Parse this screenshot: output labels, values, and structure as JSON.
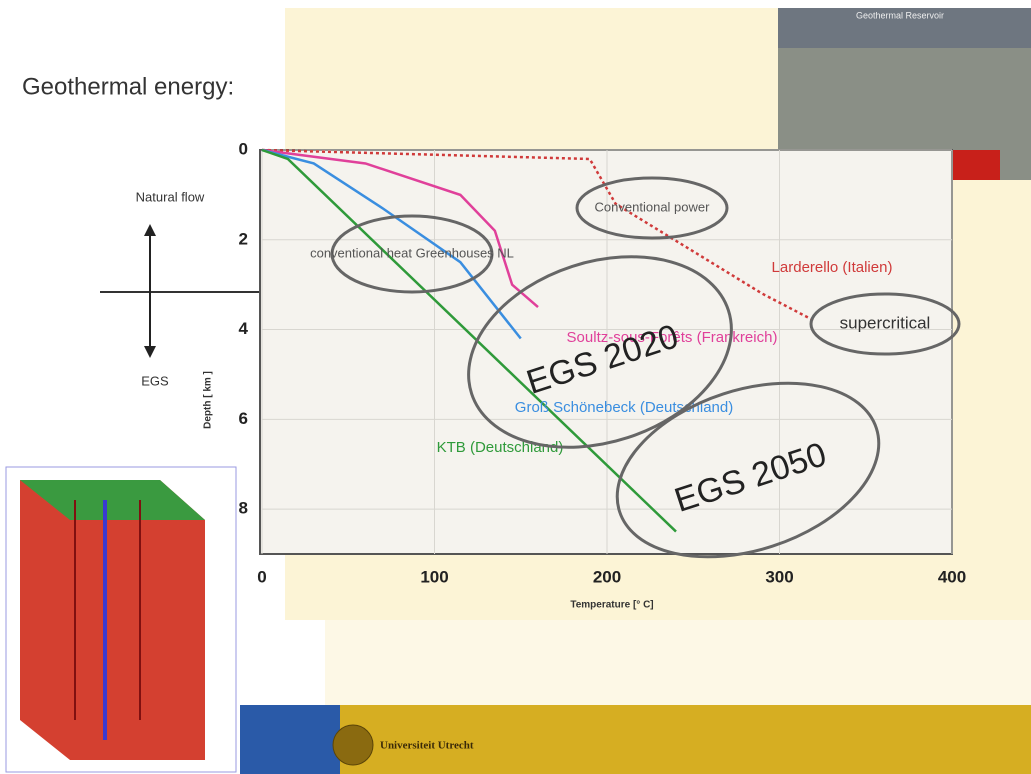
{
  "page_title": "Geothermal energy:",
  "photo_caption": "Geothermal Reservoir",
  "footer": "Universiteit Utrecht",
  "side_labels": [
    "Natural flow",
    "EGS"
  ],
  "chart_data": {
    "type": "line",
    "x_label": "Temperature [° C]",
    "y_label": "Depth [ km ]",
    "xlim": [
      0,
      400
    ],
    "ylim": [
      0,
      9
    ],
    "y_reversed": true,
    "xticks": [
      0,
      100,
      200,
      300,
      400
    ],
    "yticks": [
      0,
      2,
      4,
      6,
      8
    ],
    "grid": true,
    "series": [
      {
        "name": "Larderello (Italien)",
        "color": "#d03a3a",
        "style": "dotted",
        "x": [
          0,
          190,
          205,
          290,
          320
        ],
        "values": [
          0,
          0.2,
          1.2,
          3.2,
          3.8
        ]
      },
      {
        "name": "Soultz-sous-Forêts (Frankreich)",
        "color": "#e0409a",
        "style": "solid",
        "x": [
          0,
          60,
          115,
          135,
          145,
          160
        ],
        "values": [
          0,
          0.3,
          1.0,
          1.8,
          3.0,
          3.5
        ]
      },
      {
        "name": "Groß Schönebeck (Deutschland)",
        "color": "#3a8ee0",
        "style": "solid",
        "x": [
          0,
          30,
          70,
          115,
          150
        ],
        "values": [
          0,
          0.3,
          1.3,
          2.5,
          4.2
        ]
      },
      {
        "name": "KTB (Deutschland)",
        "color": "#2f9a3a",
        "style": "solid",
        "x": [
          0,
          15,
          240
        ],
        "values": [
          0,
          0.2,
          8.5
        ]
      }
    ],
    "annotations": [
      "conventional heat Greenhouses NL",
      "Conventional power",
      "supercritical",
      "EGS 2020",
      "EGS 2050"
    ]
  }
}
